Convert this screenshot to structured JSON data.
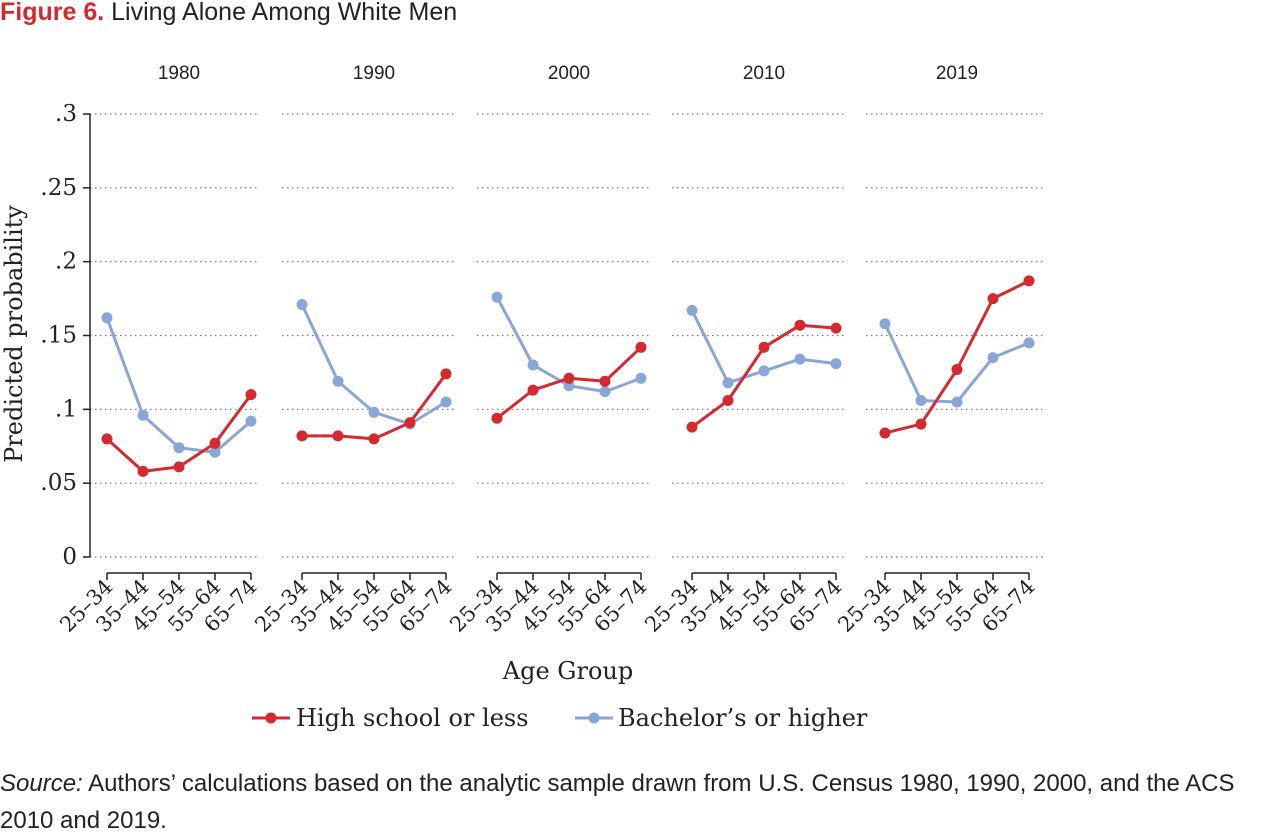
{
  "figure": {
    "label": "Figure 6.",
    "title": "Living Alone Among White Men"
  },
  "source": {
    "label": "Source:",
    "text": " Authors’ calculations based on the analytic sample drawn from U.S. Census 1980, 1990, 2000, and the ACS 2010 and 2019."
  },
  "colors": {
    "high_school": "#d42a2f",
    "bachelors": "#8aa6d6",
    "axis": "#222222",
    "grid": "#777777"
  },
  "chart_data": {
    "type": "line",
    "title": "Living Alone Among White Men",
    "xlabel": "Age Group",
    "ylabel": "Predicted probability",
    "ylim": [
      0,
      0.3
    ],
    "y_ticks": [
      0,
      0.05,
      0.1,
      0.15,
      0.2,
      0.25,
      0.3
    ],
    "y_tick_labels": [
      "0",
      ".05",
      ".1",
      ".15",
      ".2",
      ".25",
      ".3"
    ],
    "categories": [
      "25–34",
      "35–44",
      "45–54",
      "55–64",
      "65–74"
    ],
    "grid": "horizontal dotted",
    "legend_position": "bottom",
    "panels": [
      {
        "name": "1980",
        "series": [
          {
            "name": "High school or less",
            "values": [
              0.08,
              0.058,
              0.061,
              0.077,
              0.11
            ]
          },
          {
            "name": "Bachelor’s or higher",
            "values": [
              0.162,
              0.096,
              0.074,
              0.071,
              0.092
            ]
          }
        ]
      },
      {
        "name": "1990",
        "series": [
          {
            "name": "High school or less",
            "values": [
              0.082,
              0.082,
              0.08,
              0.091,
              0.124
            ]
          },
          {
            "name": "Bachelor’s or higher",
            "values": [
              0.171,
              0.119,
              0.098,
              0.09,
              0.105
            ]
          }
        ]
      },
      {
        "name": "2000",
        "series": [
          {
            "name": "High school or less",
            "values": [
              0.094,
              0.113,
              0.121,
              0.119,
              0.142
            ]
          },
          {
            "name": "Bachelor’s or higher",
            "values": [
              0.176,
              0.13,
              0.116,
              0.112,
              0.121
            ]
          }
        ]
      },
      {
        "name": "2010",
        "series": [
          {
            "name": "High school or less",
            "values": [
              0.088,
              0.106,
              0.142,
              0.157,
              0.155
            ]
          },
          {
            "name": "Bachelor’s or higher",
            "values": [
              0.167,
              0.118,
              0.126,
              0.134,
              0.131
            ]
          }
        ]
      },
      {
        "name": "2019",
        "series": [
          {
            "name": "High school or less",
            "values": [
              0.084,
              0.09,
              0.127,
              0.175,
              0.187
            ]
          },
          {
            "name": "Bachelor’s or higher",
            "values": [
              0.158,
              0.106,
              0.105,
              0.135,
              0.145
            ]
          }
        ]
      }
    ]
  }
}
